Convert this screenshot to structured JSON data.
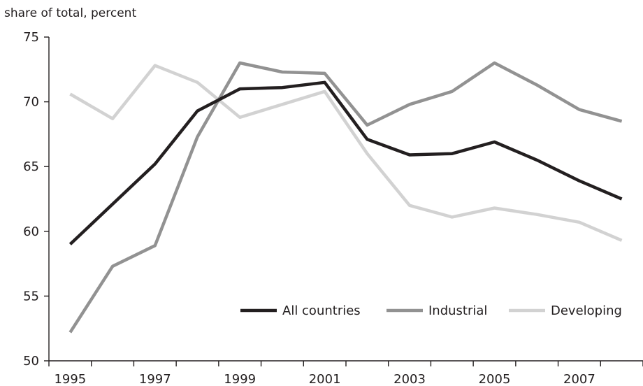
{
  "chart_data": {
    "type": "line",
    "ylabel": "share of total, percent",
    "xlabel": "",
    "title": "",
    "x": [
      1995,
      1996,
      1997,
      1998,
      1999,
      2000,
      2001,
      2002,
      2003,
      2004,
      2005,
      2006,
      2007,
      2008
    ],
    "x_tick_labels": [
      "1995",
      "1997",
      "1999",
      "2001",
      "2003",
      "2005",
      "2007"
    ],
    "y_tick_labels": [
      "50",
      "55",
      "60",
      "65",
      "70",
      "75"
    ],
    "ylim": [
      50,
      75
    ],
    "xlim": [
      1994.5,
      2008.5
    ],
    "grid": false,
    "legend_position": "bottom-right",
    "series": [
      {
        "name": "All countries",
        "color": "#231f20",
        "values": [
          59.0,
          62.1,
          65.2,
          69.3,
          71.0,
          71.1,
          71.5,
          67.1,
          65.9,
          66.0,
          66.9,
          65.5,
          63.9,
          62.5
        ]
      },
      {
        "name": "Industrial",
        "color": "#929292",
        "values": [
          52.2,
          57.3,
          58.9,
          67.3,
          73.0,
          72.3,
          72.2,
          68.2,
          69.8,
          70.8,
          73.0,
          71.3,
          69.4,
          68.5
        ]
      },
      {
        "name": "Developing",
        "color": "#d2d2d2",
        "values": [
          70.6,
          68.7,
          72.8,
          71.5,
          68.8,
          69.8,
          70.8,
          66.0,
          62.0,
          61.1,
          61.8,
          61.3,
          60.7,
          59.3
        ]
      }
    ]
  }
}
